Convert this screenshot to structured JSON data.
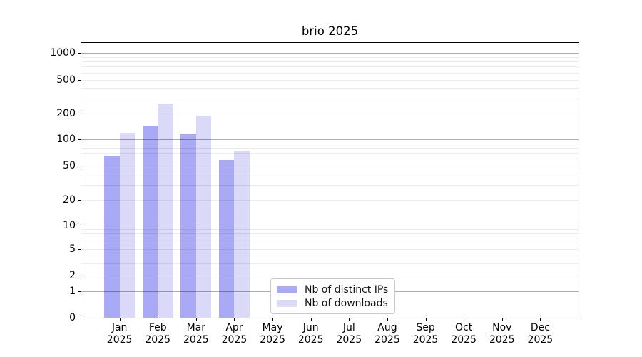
{
  "title": "brio 2025",
  "chart_data": {
    "type": "bar",
    "title": "brio 2025",
    "categories": [
      "Jan",
      "Feb",
      "Mar",
      "Apr",
      "May",
      "Jun",
      "Jul",
      "Aug",
      "Sep",
      "Oct",
      "Nov",
      "Dec"
    ],
    "year": "2025",
    "series": [
      {
        "name": "Nb of distinct IPs",
        "color": "#a9a9f6",
        "values": [
          65,
          145,
          115,
          58,
          null,
          null,
          null,
          null,
          null,
          null,
          null,
          null
        ]
      },
      {
        "name": "Nb of downloads",
        "color": "#dadaf8",
        "values": [
          120,
          260,
          190,
          72,
          null,
          null,
          null,
          null,
          null,
          null,
          null,
          null
        ]
      }
    ],
    "yscale": "symlog",
    "y_ticks": [
      0,
      1,
      2,
      5,
      10,
      20,
      50,
      100,
      200,
      500,
      1000
    ],
    "ylim": [
      0,
      1300
    ],
    "xlabel": "",
    "ylabel": "",
    "grid": true,
    "legend_position": "lower center inside"
  }
}
